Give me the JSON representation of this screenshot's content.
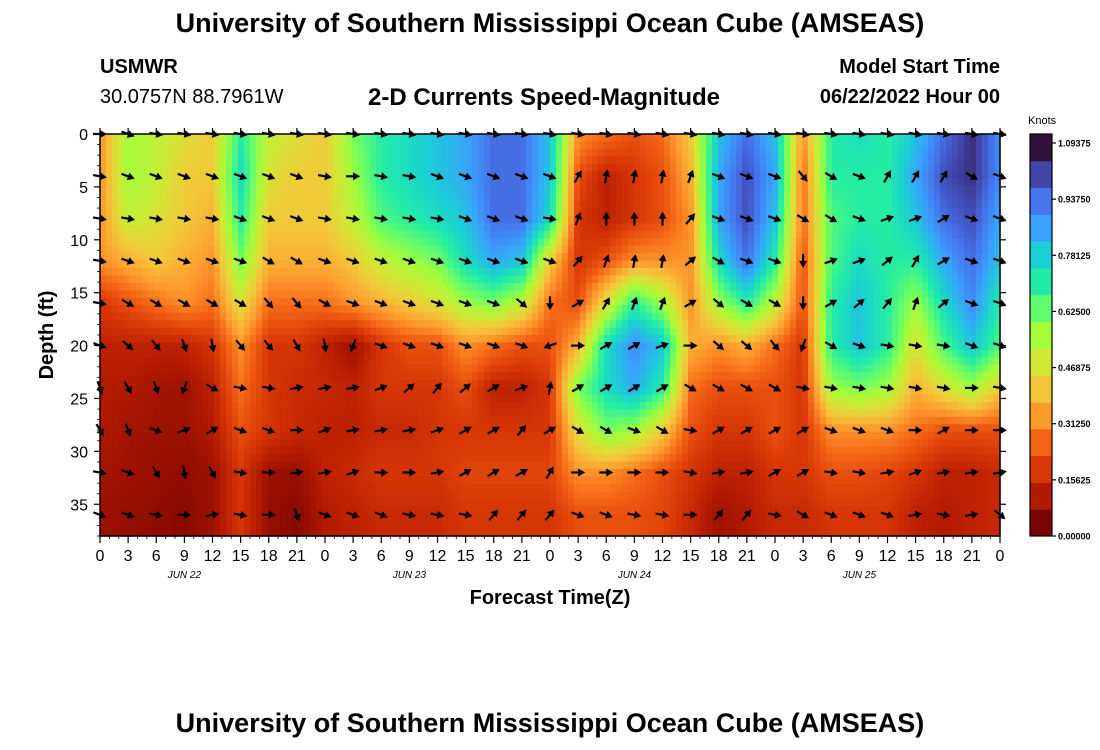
{
  "header": {
    "title": "University of Southern Mississippi Ocean Cube (AMSEAS)",
    "station": "USMWR",
    "coords": "30.0757N  88.7961W",
    "subtitle": "2-D Currents Speed-Magnitude",
    "model_start_label": "Model Start Time",
    "model_start_value": "06/22/2022 Hour 00"
  },
  "footer": {
    "title": "University of Southern Mississippi Ocean Cube (AMSEAS)"
  },
  "chart_data": {
    "type": "heatmap",
    "xlabel": "Forecast Time(Z)",
    "ylabel": "Depth (ft)",
    "x_ticks": [
      "0",
      "3",
      "6",
      "9",
      "12",
      "15",
      "18",
      "21",
      "0",
      "3",
      "6",
      "9",
      "12",
      "15",
      "18",
      "21",
      "0",
      "3",
      "6",
      "9",
      "12",
      "15",
      "18",
      "21",
      "0",
      "3",
      "6",
      "9",
      "12",
      "15",
      "18",
      "21",
      "0"
    ],
    "day_labels": [
      "JUN 22",
      "JUN 23",
      "JUN 24",
      "JUN 25"
    ],
    "y_ticks": [
      "0",
      "5",
      "10",
      "15",
      "20",
      "25",
      "30",
      "35"
    ],
    "x_range_hours": [
      0,
      96
    ],
    "y_range_ft": [
      0,
      38
    ],
    "colorbar": {
      "label": "Knots",
      "ticks": [
        "1.09375",
        "0.93750",
        "0.78125",
        "0.62500",
        "0.46875",
        "0.31250",
        "0.15625",
        "0.00000"
      ],
      "colors": [
        "#30123b",
        "#4145ab",
        "#4675ed",
        "#39a2fc",
        "#1bcfd4",
        "#24eca6",
        "#61fc6c",
        "#a4fc3b",
        "#d1e834",
        "#f3c63a",
        "#fe9b2d",
        "#f36315",
        "#d93806",
        "#b11901",
        "#7a0402"
      ]
    },
    "speed_field": {
      "time_hours": [
        0,
        3,
        6,
        9,
        12,
        15,
        18,
        21,
        24,
        27,
        30,
        33,
        36,
        39,
        42,
        45,
        48,
        51,
        54,
        57,
        60,
        63,
        66,
        69,
        72,
        75,
        78,
        81,
        84,
        87,
        90,
        93,
        96
      ],
      "depth_ft": [
        0,
        4,
        8,
        12,
        16,
        20,
        24,
        28,
        32,
        36
      ],
      "values": [
        [
          0.3,
          0.55,
          0.5,
          0.45,
          0.4,
          0.7,
          0.5,
          0.45,
          0.4,
          0.6,
          0.7,
          0.75,
          0.8,
          0.85,
          0.95,
          0.95,
          0.8,
          0.3,
          0.25,
          0.2,
          0.25,
          0.4,
          0.8,
          0.95,
          0.8,
          0.3,
          0.7,
          0.75,
          0.7,
          0.8,
          0.95,
          1.05,
          0.9
        ],
        [
          0.3,
          0.55,
          0.5,
          0.4,
          0.4,
          0.75,
          0.45,
          0.4,
          0.4,
          0.55,
          0.7,
          0.75,
          0.8,
          0.85,
          0.95,
          0.95,
          0.8,
          0.2,
          0.1,
          0.15,
          0.2,
          0.35,
          0.85,
          1.0,
          0.85,
          0.25,
          0.7,
          0.7,
          0.7,
          0.85,
          1.0,
          1.05,
          0.9
        ],
        [
          0.3,
          0.5,
          0.45,
          0.4,
          0.35,
          0.7,
          0.4,
          0.4,
          0.4,
          0.5,
          0.65,
          0.7,
          0.75,
          0.8,
          0.95,
          0.95,
          0.75,
          0.15,
          0.1,
          0.15,
          0.2,
          0.3,
          0.85,
          1.0,
          0.8,
          0.25,
          0.65,
          0.7,
          0.7,
          0.8,
          0.95,
          1.0,
          0.85
        ],
        [
          0.3,
          0.35,
          0.4,
          0.35,
          0.3,
          0.6,
          0.35,
          0.35,
          0.35,
          0.4,
          0.5,
          0.55,
          0.6,
          0.75,
          0.85,
          0.8,
          0.4,
          0.15,
          0.2,
          0.3,
          0.3,
          0.3,
          0.75,
          0.95,
          0.7,
          0.2,
          0.65,
          0.75,
          0.7,
          0.7,
          0.85,
          0.95,
          0.8
        ],
        [
          0.15,
          0.2,
          0.25,
          0.3,
          0.25,
          0.45,
          0.25,
          0.25,
          0.25,
          0.3,
          0.35,
          0.4,
          0.45,
          0.55,
          0.6,
          0.5,
          0.25,
          0.2,
          0.45,
          0.7,
          0.55,
          0.3,
          0.55,
          0.7,
          0.5,
          0.2,
          0.7,
          0.8,
          0.7,
          0.55,
          0.75,
          0.9,
          0.7
        ],
        [
          0.1,
          0.1,
          0.1,
          0.1,
          0.15,
          0.3,
          0.15,
          0.15,
          0.1,
          0.05,
          0.15,
          0.2,
          0.2,
          0.3,
          0.25,
          0.2,
          0.2,
          0.35,
          0.75,
          0.9,
          0.8,
          0.35,
          0.3,
          0.35,
          0.25,
          0.15,
          0.7,
          0.8,
          0.7,
          0.45,
          0.65,
          0.8,
          0.65
        ],
        [
          0.08,
          0.08,
          0.06,
          0.05,
          0.1,
          0.25,
          0.15,
          0.12,
          0.12,
          0.1,
          0.15,
          0.15,
          0.15,
          0.2,
          0.1,
          0.1,
          0.15,
          0.6,
          0.75,
          0.85,
          0.7,
          0.25,
          0.2,
          0.2,
          0.2,
          0.15,
          0.55,
          0.6,
          0.55,
          0.35,
          0.45,
          0.55,
          0.4
        ],
        [
          0.08,
          0.06,
          0.05,
          0.05,
          0.08,
          0.2,
          0.15,
          0.12,
          0.1,
          0.1,
          0.12,
          0.12,
          0.15,
          0.15,
          0.15,
          0.15,
          0.15,
          0.45,
          0.6,
          0.55,
          0.4,
          0.2,
          0.15,
          0.15,
          0.2,
          0.15,
          0.3,
          0.3,
          0.3,
          0.25,
          0.2,
          0.2,
          0.2
        ],
        [
          0.06,
          0.05,
          0.04,
          0.03,
          0.05,
          0.15,
          0.05,
          0.04,
          0.1,
          0.12,
          0.15,
          0.15,
          0.15,
          0.18,
          0.18,
          0.18,
          0.18,
          0.3,
          0.3,
          0.25,
          0.2,
          0.15,
          0.1,
          0.1,
          0.15,
          0.15,
          0.2,
          0.2,
          0.18,
          0.15,
          0.1,
          0.1,
          0.12
        ],
        [
          0.05,
          0.04,
          0.03,
          0.02,
          0.05,
          0.15,
          0.04,
          0.02,
          0.08,
          0.1,
          0.12,
          0.12,
          0.12,
          0.15,
          0.15,
          0.15,
          0.15,
          0.2,
          0.2,
          0.2,
          0.18,
          0.12,
          0.05,
          0.08,
          0.12,
          0.12,
          0.15,
          0.15,
          0.15,
          0.1,
          0.08,
          0.1,
          0.12
        ]
      ]
    },
    "direction_field_deg": {
      "time_hours": [
        0,
        3,
        6,
        9,
        12,
        15,
        18,
        21,
        24,
        27,
        30,
        33,
        36,
        39,
        42,
        45,
        48,
        51,
        54,
        57,
        60,
        63,
        66,
        69,
        72,
        75,
        78,
        81,
        84,
        87,
        90,
        93,
        96
      ],
      "depth_ft": [
        0,
        4,
        8,
        12,
        16,
        20,
        24,
        28,
        32,
        36
      ],
      "values": [
        [
          90,
          110,
          100,
          100,
          100,
          100,
          100,
          100,
          100,
          100,
          100,
          100,
          100,
          100,
          100,
          100,
          100,
          100,
          100,
          100,
          100,
          100,
          100,
          100,
          100,
          100,
          100,
          100,
          100,
          100,
          100,
          100,
          100
        ],
        [
          100,
          110,
          110,
          110,
          110,
          110,
          110,
          110,
          100,
          90,
          100,
          100,
          110,
          110,
          110,
          110,
          110,
          30,
          10,
          10,
          10,
          20,
          110,
          110,
          110,
          140,
          120,
          110,
          30,
          30,
          30,
          120,
          110
        ],
        [
          100,
          100,
          100,
          100,
          100,
          110,
          110,
          110,
          100,
          100,
          100,
          100,
          100,
          110,
          110,
          110,
          100,
          20,
          0,
          0,
          0,
          40,
          110,
          110,
          110,
          120,
          120,
          110,
          70,
          70,
          60,
          110,
          110
        ],
        [
          100,
          110,
          110,
          110,
          110,
          110,
          120,
          120,
          110,
          110,
          110,
          110,
          110,
          110,
          110,
          110,
          110,
          40,
          20,
          10,
          10,
          50,
          120,
          110,
          110,
          180,
          70,
          70,
          50,
          30,
          60,
          110,
          110
        ],
        [
          100,
          120,
          120,
          120,
          120,
          120,
          140,
          140,
          120,
          110,
          110,
          110,
          110,
          110,
          110,
          130,
          180,
          60,
          30,
          20,
          20,
          60,
          130,
          120,
          120,
          180,
          60,
          50,
          40,
          20,
          50,
          110,
          110
        ],
        [
          110,
          130,
          140,
          160,
          170,
          140,
          140,
          150,
          170,
          200,
          110,
          110,
          110,
          110,
          110,
          110,
          250,
          90,
          60,
          60,
          70,
          90,
          130,
          130,
          140,
          200,
          120,
          110,
          100,
          100,
          100,
          110,
          110
        ],
        [
          160,
          150,
          160,
          200,
          120,
          100,
          100,
          80,
          80,
          80,
          70,
          50,
          40,
          50,
          60,
          70,
          10,
          60,
          60,
          60,
          60,
          120,
          120,
          120,
          120,
          100,
          100,
          100,
          100,
          100,
          100,
          90,
          100
        ],
        [
          150,
          160,
          110,
          70,
          60,
          110,
          110,
          90,
          70,
          80,
          80,
          80,
          70,
          60,
          60,
          40,
          60,
          120,
          120,
          110,
          120,
          100,
          60,
          60,
          60,
          60,
          110,
          110,
          110,
          90,
          60,
          90,
          90
        ],
        [
          100,
          110,
          150,
          170,
          150,
          100,
          90,
          80,
          80,
          70,
          90,
          90,
          80,
          60,
          60,
          60,
          30,
          90,
          90,
          90,
          90,
          100,
          80,
          80,
          60,
          60,
          100,
          100,
          80,
          70,
          80,
          80,
          80
        ],
        [
          110,
          110,
          100,
          90,
          80,
          100,
          90,
          160,
          110,
          110,
          110,
          100,
          100,
          100,
          40,
          40,
          40,
          110,
          110,
          100,
          100,
          90,
          40,
          40,
          100,
          120,
          110,
          110,
          110,
          80,
          100,
          80,
          130
        ]
      ]
    }
  }
}
